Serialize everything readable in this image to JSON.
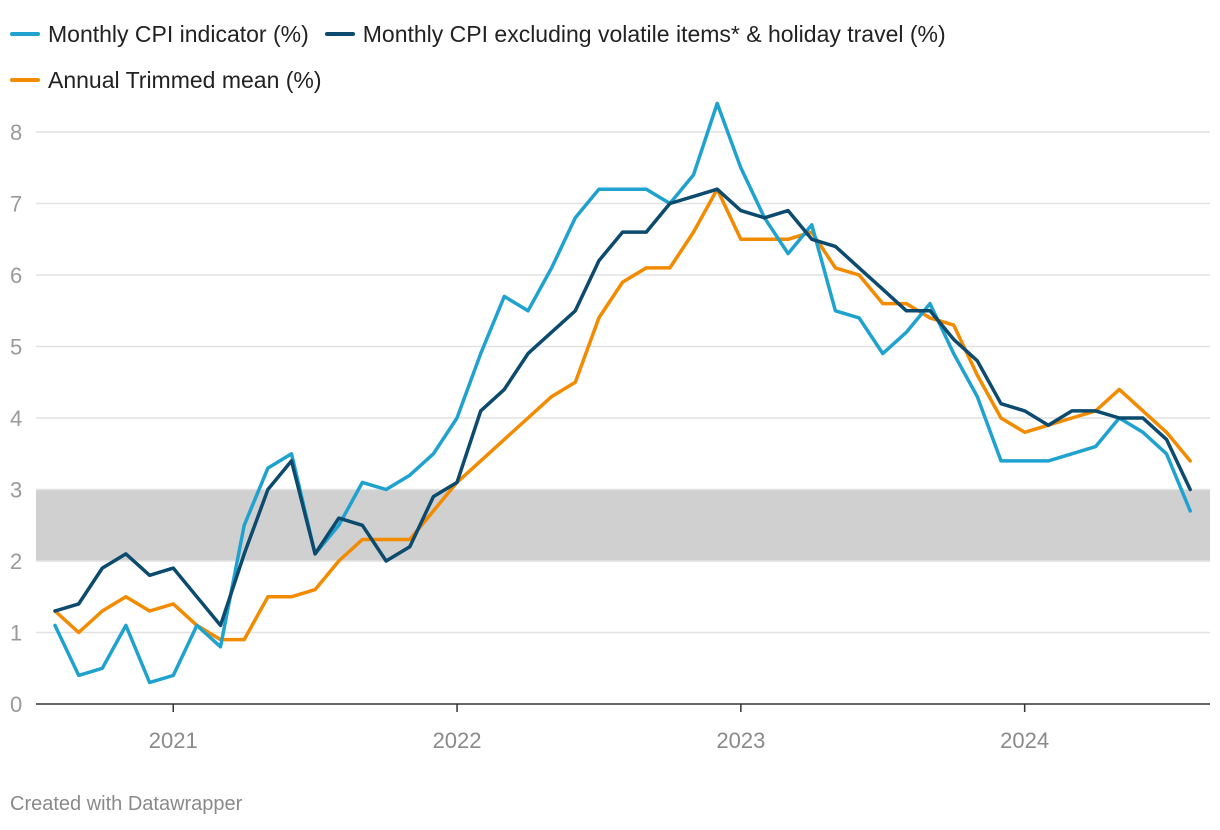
{
  "legend": [
    {
      "label": "Monthly CPI indicator (%)",
      "color": "#20a2cf"
    },
    {
      "label": "Monthly CPI excluding volatile items* & holiday travel (%)",
      "color": "#0c4b6e"
    },
    {
      "label": "Annual Trimmed mean (%)",
      "color": "#f28b00"
    }
  ],
  "footer": "Created with Datawrapper",
  "chart_data": {
    "type": "line",
    "x_start": "2020-08",
    "x_ticks": [
      "2021",
      "2022",
      "2023",
      "2024"
    ],
    "y_ticks": [
      "0",
      "1",
      "2",
      "3",
      "4",
      "5",
      "6",
      "7",
      "8"
    ],
    "ylim": [
      0,
      8.4
    ],
    "grid": true,
    "legend_position": "top",
    "band": {
      "from": 2,
      "to": 3,
      "color": "#d0d0d0"
    },
    "series": [
      {
        "name": "Monthly CPI indicator (%)",
        "color": "#20a2cf",
        "x": [
          "2020-08",
          "2020-09",
          "2020-10",
          "2020-11",
          "2020-12",
          "2021-01",
          "2021-02",
          "2021-03",
          "2021-04",
          "2021-05",
          "2021-06",
          "2021-07",
          "2021-08",
          "2021-09",
          "2021-10",
          "2021-11",
          "2021-12",
          "2022-01",
          "2022-02",
          "2022-03",
          "2022-04",
          "2022-05",
          "2022-06",
          "2022-07",
          "2022-08",
          "2022-09",
          "2022-10",
          "2022-11",
          "2022-12",
          "2023-01",
          "2023-02",
          "2023-03",
          "2023-04",
          "2023-05",
          "2023-06",
          "2023-07",
          "2023-08",
          "2023-09",
          "2023-10",
          "2023-11",
          "2023-12",
          "2024-01",
          "2024-02",
          "2024-03",
          "2024-04",
          "2024-05",
          "2024-06",
          "2024-07",
          "2024-08"
        ],
        "values": [
          1.1,
          0.4,
          0.5,
          1.1,
          0.3,
          0.4,
          1.1,
          0.8,
          2.5,
          3.3,
          3.5,
          2.1,
          2.5,
          3.1,
          3.0,
          3.2,
          3.5,
          4.0,
          4.9,
          5.7,
          5.5,
          6.1,
          6.8,
          7.2,
          7.2,
          7.2,
          7.0,
          7.4,
          8.4,
          7.5,
          6.8,
          6.3,
          6.7,
          5.5,
          5.4,
          4.9,
          5.2,
          5.6,
          4.9,
          4.3,
          3.4,
          3.4,
          3.4,
          3.5,
          3.6,
          4.0,
          3.8,
          3.5,
          2.7
        ]
      },
      {
        "name": "Monthly CPI excluding volatile items* & holiday travel (%)",
        "color": "#0c4b6e",
        "x": [
          "2020-08",
          "2020-09",
          "2020-10",
          "2020-11",
          "2020-12",
          "2021-01",
          "2021-02",
          "2021-03",
          "2021-04",
          "2021-05",
          "2021-06",
          "2021-07",
          "2021-08",
          "2021-09",
          "2021-10",
          "2021-11",
          "2021-12",
          "2022-01",
          "2022-02",
          "2022-03",
          "2022-04",
          "2022-05",
          "2022-06",
          "2022-07",
          "2022-08",
          "2022-09",
          "2022-10",
          "2022-11",
          "2022-12",
          "2023-01",
          "2023-02",
          "2023-03",
          "2023-04",
          "2023-05",
          "2023-06",
          "2023-07",
          "2023-08",
          "2023-09",
          "2023-10",
          "2023-11",
          "2023-12",
          "2024-01",
          "2024-02",
          "2024-03",
          "2024-04",
          "2024-05",
          "2024-06",
          "2024-07",
          "2024-08"
        ],
        "values": [
          1.3,
          1.4,
          1.9,
          2.1,
          1.8,
          1.9,
          1.5,
          1.1,
          2.1,
          3.0,
          3.4,
          2.1,
          2.6,
          2.5,
          2.0,
          2.2,
          2.9,
          3.1,
          4.1,
          4.4,
          4.9,
          5.2,
          5.5,
          6.2,
          6.6,
          6.6,
          7.0,
          7.1,
          7.2,
          6.9,
          6.8,
          6.9,
          6.5,
          6.4,
          6.1,
          5.8,
          5.5,
          5.5,
          5.1,
          4.8,
          4.2,
          4.1,
          3.9,
          4.1,
          4.1,
          4.0,
          4.0,
          3.7,
          3.0
        ]
      },
      {
        "name": "Annual Trimmed mean (%)",
        "color": "#f28b00",
        "x": [
          "2020-08",
          "2020-09",
          "2020-10",
          "2020-11",
          "2020-12",
          "2021-01",
          "2021-02",
          "2021-03",
          "2021-04",
          "2021-05",
          "2021-06",
          "2021-07",
          "2021-08",
          "2021-09",
          "2021-10",
          "2021-11",
          "2021-12",
          "2022-01",
          "2022-02",
          "2022-03",
          "2022-04",
          "2022-05",
          "2022-06",
          "2022-07",
          "2022-08",
          "2022-09",
          "2022-10",
          "2022-11",
          "2022-12",
          "2023-01",
          "2023-02",
          "2023-03",
          "2023-04",
          "2023-05",
          "2023-06",
          "2023-07",
          "2023-08",
          "2023-09",
          "2023-10",
          "2023-11",
          "2023-12",
          "2024-01",
          "2024-02",
          "2024-03",
          "2024-04",
          "2024-05",
          "2024-06",
          "2024-07",
          "2024-08"
        ],
        "values": [
          1.3,
          1.0,
          1.3,
          1.5,
          1.3,
          1.4,
          1.1,
          0.9,
          0.9,
          1.5,
          1.5,
          1.6,
          2.0,
          2.3,
          2.3,
          2.3,
          2.7,
          3.1,
          3.4,
          3.7,
          4.0,
          4.3,
          4.5,
          5.4,
          5.9,
          6.1,
          6.1,
          6.6,
          7.2,
          6.5,
          6.5,
          6.5,
          6.6,
          6.1,
          6.0,
          5.6,
          5.6,
          5.4,
          5.3,
          4.6,
          4.0,
          3.8,
          3.9,
          4.0,
          4.1,
          4.4,
          4.1,
          3.8,
          3.4
        ]
      }
    ]
  }
}
